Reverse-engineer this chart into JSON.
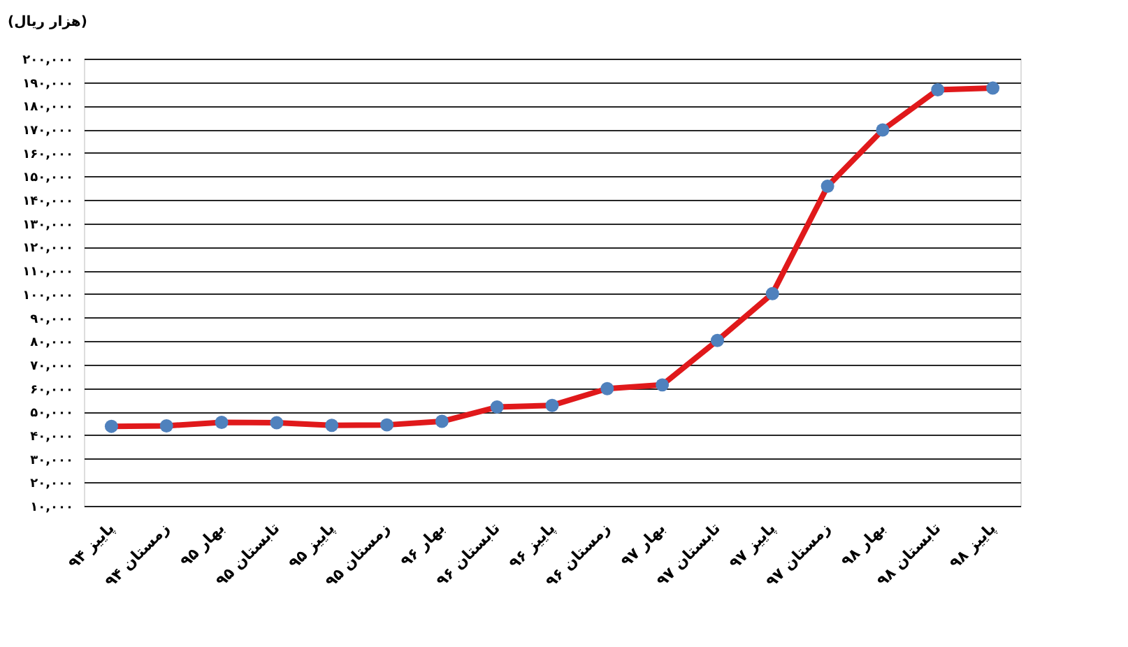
{
  "chart_data": {
    "type": "line",
    "ylabel": "(هزار ریال)",
    "categories": [
      "پاییز ۹۴",
      "زمستان ۹۴",
      "بهار ۹۵",
      "تابستان ۹۵",
      "پاییز ۹۵",
      "زمستان ۹۵",
      "بهار ۹۶",
      "تابستان ۹۶",
      "پاییز ۹۶",
      "زمستان ۹۶",
      "بهار ۹۷",
      "تابستان ۹۷",
      "پاییز ۹۷",
      "زمستان ۹۷",
      "بهار ۹۸",
      "تابستان ۹۸",
      "پاییز ۹۸"
    ],
    "series": [
      {
        "color": "#e0191b",
        "values": [
          43800,
          44000,
          45500,
          45300,
          44200,
          44400,
          45900,
          52000,
          52700,
          59800,
          61400,
          80300,
          100200,
          145800,
          169700,
          186800,
          187500
        ]
      }
    ],
    "ylim": [
      10000,
      200000
    ],
    "yticks": [
      {
        "value": 10000,
        "label": "۱۰,۰۰۰"
      },
      {
        "value": 20000,
        "label": "۲۰,۰۰۰"
      },
      {
        "value": 30000,
        "label": "۳۰,۰۰۰"
      },
      {
        "value": 40000,
        "label": "۴۰,۰۰۰"
      },
      {
        "value": 50000,
        "label": "۵۰,۰۰۰"
      },
      {
        "value": 60000,
        "label": "۶۰,۰۰۰"
      },
      {
        "value": 70000,
        "label": "۷۰,۰۰۰"
      },
      {
        "value": 80000,
        "label": "۸۰,۰۰۰"
      },
      {
        "value": 90000,
        "label": "۹۰,۰۰۰"
      },
      {
        "value": 100000,
        "label": "۱۰۰,۰۰۰"
      },
      {
        "value": 110000,
        "label": "۱۱۰,۰۰۰"
      },
      {
        "value": 120000,
        "label": "۱۲۰,۰۰۰"
      },
      {
        "value": 130000,
        "label": "۱۳۰,۰۰۰"
      },
      {
        "value": 140000,
        "label": "۱۴۰,۰۰۰"
      },
      {
        "value": 150000,
        "label": "۱۵۰,۰۰۰"
      },
      {
        "value": 160000,
        "label": "۱۶۰,۰۰۰"
      },
      {
        "value": 170000,
        "label": "۱۷۰,۰۰۰"
      },
      {
        "value": 180000,
        "label": "۱۸۰,۰۰۰"
      },
      {
        "value": 190000,
        "label": "۱۹۰,۰۰۰"
      },
      {
        "value": 200000,
        "label": "۲۰۰,۰۰۰"
      }
    ],
    "grid": "y",
    "marker": "circle",
    "line_style": "solid",
    "legend": false
  }
}
